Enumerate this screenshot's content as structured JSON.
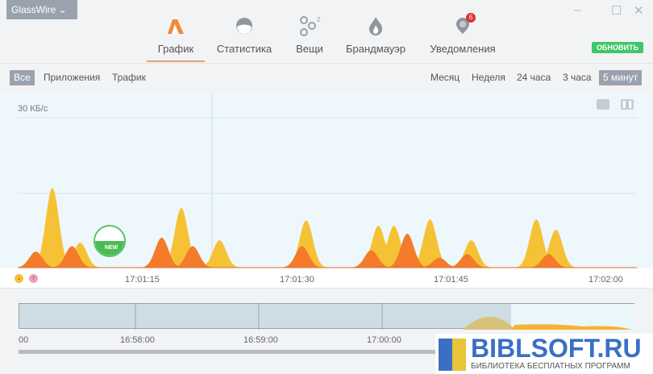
{
  "app": {
    "title": "GlassWire"
  },
  "window_controls": [
    "minimize",
    "maximize",
    "close"
  ],
  "tabs": [
    {
      "label": "График",
      "icon": "graph-icon",
      "active": true
    },
    {
      "label": "Статистика",
      "icon": "stats-icon"
    },
    {
      "label": "Вещи",
      "icon": "things-icon",
      "badge": "2"
    },
    {
      "label": "Брандмауэр",
      "icon": "firewall-icon"
    },
    {
      "label": "Уведомления",
      "icon": "alerts-icon",
      "badge": "6"
    }
  ],
  "update_label": "ОБНОВИТЬ",
  "filters": [
    {
      "label": "Все",
      "selected": true
    },
    {
      "label": "Приложения"
    },
    {
      "label": "Трафик"
    }
  ],
  "ranges": [
    {
      "label": "Месяц"
    },
    {
      "label": "Неделя"
    },
    {
      "label": "24 часа"
    },
    {
      "label": "3 часа"
    },
    {
      "label": "5 минут",
      "selected": true
    }
  ],
  "chart_data": {
    "type": "area",
    "ylabel": "30 КБ/с",
    "x_ticks": [
      "17:01:15",
      "17:01:30",
      "17:01:45",
      "17:02:00"
    ],
    "series": [
      {
        "kind": "download",
        "color": "#f6c235",
        "peaks": [
          [
            6.4,
            16
          ],
          [
            9.1,
            5
          ],
          [
            18.9,
            12
          ],
          [
            22.6,
            5.5
          ],
          [
            31,
            9.5
          ],
          [
            38,
            8.4
          ],
          [
            39.5,
            8.4
          ],
          [
            43,
            9.7
          ],
          [
            47,
            5.5
          ],
          [
            53.3,
            9.7
          ],
          [
            55.2,
            7.6
          ]
        ]
      },
      {
        "kind": "upload",
        "color": "#f47b2a",
        "peaks": [
          [
            4.8,
            3.2
          ],
          [
            8.3,
            4.3
          ],
          [
            17,
            6
          ],
          [
            20,
            4.3
          ],
          [
            30.6,
            4.3
          ],
          [
            37.3,
            3.5
          ],
          [
            40.8,
            6.8
          ],
          [
            43.9,
            2
          ],
          [
            46.6,
            2.7
          ],
          [
            54.5,
            2.7
          ]
        ]
      }
    ],
    "app_marker": {
      "label": "NEW"
    }
  },
  "overview": {
    "ticks": [
      "00",
      "16:58:00",
      "16:59:00",
      "17:00:00"
    ]
  },
  "watermark": {
    "title": "BIBLSOFT.RU",
    "subtitle": "БИБЛИОТЕКА БЕСПЛАТНЫХ ПРОГРАММ"
  }
}
